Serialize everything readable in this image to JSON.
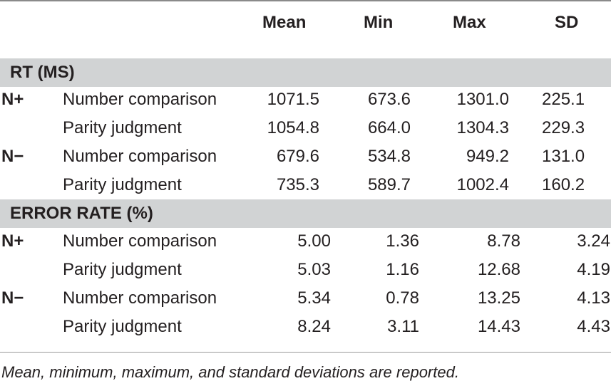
{
  "columns": [
    "Mean",
    "Min",
    "Max",
    "SD"
  ],
  "sections": [
    {
      "title": "RT (MS)",
      "rows": [
        {
          "group": "N+",
          "condition": "Number comparison",
          "values": [
            "1071.5",
            "673.6",
            "1301.0",
            "225.1"
          ]
        },
        {
          "group": "",
          "condition": "Parity judgment",
          "values": [
            "1054.8",
            "664.0",
            "1304.3",
            "229.3"
          ]
        },
        {
          "group": "N−",
          "condition": "Number comparison",
          "values": [
            "679.6",
            "534.8",
            "949.2",
            "131.0"
          ]
        },
        {
          "group": "",
          "condition": "Parity judgment",
          "values": [
            "735.3",
            "589.7",
            "1002.4",
            "160.2"
          ]
        }
      ]
    },
    {
      "title": "ERROR RATE (%)",
      "rows": [
        {
          "group": "N+",
          "condition": "Number comparison",
          "values": [
            "5.00",
            "1.36",
            "8.78",
            "3.24"
          ]
        },
        {
          "group": "",
          "condition": "Parity judgment",
          "values": [
            "5.03",
            "1.16",
            "12.68",
            "4.19"
          ]
        },
        {
          "group": "N−",
          "condition": "Number comparison",
          "values": [
            "5.34",
            "0.78",
            "13.25",
            "4.13"
          ]
        },
        {
          "group": "",
          "condition": "Parity judgment",
          "values": [
            "8.24",
            "3.11",
            "14.43",
            "4.43"
          ]
        }
      ]
    }
  ],
  "caption": "Mean, minimum, maximum, and standard deviations are reported.",
  "colors": {
    "section_band": "#d1d3d4",
    "text": "#231f20",
    "rule": "#8a8a8a"
  }
}
